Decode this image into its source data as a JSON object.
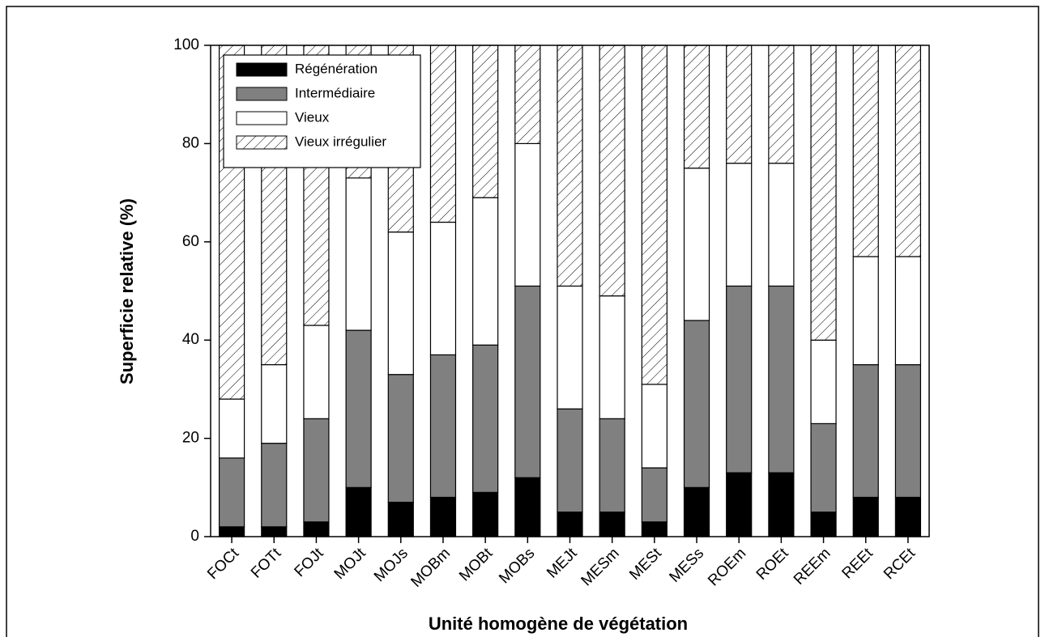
{
  "chart_data": {
    "type": "stacked_bar",
    "x_label": "Unité homogène de végétation",
    "y_label": "Superficie relative (%)",
    "categories": [
      "FOCt",
      "FOTt",
      "FOJt",
      "MOJt",
      "MOJs",
      "MOBm",
      "MOBt",
      "MOBs",
      "MEJt",
      "MESm",
      "MESt",
      "MESs",
      "ROEm",
      "ROEt",
      "REEm",
      "REEt",
      "RCEt"
    ],
    "series": [
      {
        "name": "Régénération",
        "color": "#000000",
        "values": [
          2,
          2,
          3,
          10,
          7,
          8,
          9,
          12,
          5,
          5,
          3,
          10,
          13,
          13,
          5,
          8,
          8
        ]
      },
      {
        "name": "Intermédiaire",
        "color": "#808080",
        "values": [
          14,
          17,
          21,
          32,
          26,
          29,
          30,
          39,
          21,
          19,
          11,
          34,
          38,
          38,
          18,
          27,
          27
        ]
      },
      {
        "name": "Vieux",
        "color": "#ffffff",
        "values": [
          12,
          16,
          19,
          31,
          29,
          27,
          30,
          29,
          25,
          25,
          17,
          31,
          25,
          25,
          17,
          22,
          22
        ]
      },
      {
        "name": "Vieux irrégulier",
        "color": "#ffffff",
        "pattern": "hatch",
        "values": [
          72,
          65,
          57,
          27,
          38,
          36,
          31,
          20,
          49,
          51,
          69,
          25,
          24,
          24,
          60,
          43,
          43
        ]
      }
    ],
    "ylim": [
      0,
      100
    ],
    "yticks": [
      0,
      20,
      40,
      60,
      80,
      100
    ],
    "legend": "upper left"
  }
}
